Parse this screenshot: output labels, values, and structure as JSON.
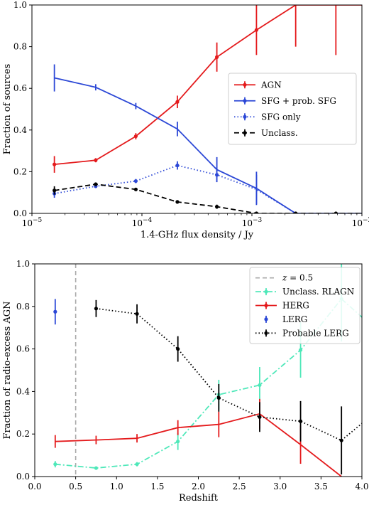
{
  "chart_data": [
    {
      "type": "line",
      "xscale": "log",
      "xlabel": "1.4-GHz flux density / Jy",
      "ylabel": "Fraction of sources",
      "xlim": [
        1e-05,
        0.01
      ],
      "ylim": [
        0,
        1
      ],
      "xticks": [
        {
          "value": 1e-05,
          "base": "10",
          "exp": "−5"
        },
        {
          "value": 0.0001,
          "base": "10",
          "exp": "−4"
        },
        {
          "value": 0.001,
          "base": "10",
          "exp": "−3"
        },
        {
          "value": 0.01,
          "base": "10",
          "exp": "−2"
        }
      ],
      "yticks": [
        {
          "value": 0,
          "label": "0.0"
        },
        {
          "value": 0.2,
          "label": "0.2"
        },
        {
          "value": 0.4,
          "label": "0.4"
        },
        {
          "value": 0.6,
          "label": "0.6"
        },
        {
          "value": 0.8,
          "label": "0.8"
        },
        {
          "value": 1.0,
          "label": "1.0"
        }
      ],
      "x": [
        1.6e-05,
        3.8e-05,
        8.8e-05,
        0.00021,
        0.00048,
        0.0011,
        0.0025,
        0.0058
      ],
      "series": [
        {
          "name": "AGN",
          "color": "#e41a1c",
          "dash": "solid",
          "x": [
            1.6e-05,
            3.8e-05,
            8.8e-05,
            0.00021,
            0.00048,
            0.0011,
            0.0025,
            0.0058,
            0.01
          ],
          "values": [
            0.235,
            0.255,
            0.37,
            0.535,
            0.75,
            0.88,
            1.0,
            1.0,
            1.0
          ],
          "err": [
            0.04,
            0.01,
            0.015,
            0.03,
            0.07,
            0.12,
            0.2,
            0.24,
            0
          ],
          "markers": [
            true,
            true,
            true,
            true,
            true,
            true,
            false,
            false,
            false
          ]
        },
        {
          "name": "SFG + prob. SFG",
          "color": "#2b47d6",
          "dash": "solid",
          "x": [
            1.6e-05,
            3.8e-05,
            8.8e-05,
            0.00021,
            0.00048,
            0.0011,
            0.0025,
            0.0058,
            0.01
          ],
          "values": [
            0.65,
            0.605,
            0.515,
            0.405,
            0.21,
            0.12,
            0.0,
            0.0,
            0.0
          ],
          "err": [
            0.065,
            0.015,
            0.015,
            0.035,
            0.06,
            0.08,
            0,
            0,
            0
          ],
          "markers": [
            false,
            false,
            false,
            false,
            false,
            false,
            false,
            false,
            false
          ]
        },
        {
          "name": "SFG only",
          "color": "#2b47d6",
          "dash": "dotted",
          "x": [
            1.6e-05,
            3.8e-05,
            8.8e-05,
            0.00021,
            0.00048,
            0.0011,
            0.0025
          ],
          "values": [
            0.095,
            0.13,
            0.155,
            0.23,
            0.185,
            0.115,
            0.0
          ],
          "err": [
            0.02,
            0.005,
            0.01,
            0.02,
            0.035,
            0.07,
            0
          ],
          "markers": [
            true,
            true,
            true,
            true,
            true,
            false,
            false
          ]
        },
        {
          "name": "Unclass.",
          "color": "#000000",
          "dash": "dashed",
          "x": [
            1.6e-05,
            3.8e-05,
            8.8e-05,
            0.00021,
            0.00048,
            0.0011,
            0.0025,
            0.0058,
            0.01
          ],
          "values": [
            0.11,
            0.14,
            0.115,
            0.055,
            0.032,
            0.0,
            0.0,
            0.0,
            0.0
          ],
          "err": [
            0.02,
            0.005,
            0.005,
            0.005,
            0.01,
            0.005,
            0,
            0,
            0
          ],
          "markers": [
            true,
            true,
            true,
            true,
            true,
            true,
            true,
            true,
            false
          ]
        }
      ],
      "legend": {
        "placement": "center-right"
      }
    },
    {
      "type": "line",
      "xlabel": "Redshift",
      "ylabel": "Fraction of radio-excess AGN",
      "xlim": [
        0,
        4
      ],
      "ylim": [
        0,
        1
      ],
      "xticks": [
        {
          "value": 0,
          "label": "0.0"
        },
        {
          "value": 0.5,
          "label": "0.5"
        },
        {
          "value": 1.0,
          "label": "1.0"
        },
        {
          "value": 1.5,
          "label": "1.5"
        },
        {
          "value": 2.0,
          "label": "2.0"
        },
        {
          "value": 2.5,
          "label": "2.5"
        },
        {
          "value": 3.0,
          "label": "3.0"
        },
        {
          "value": 3.5,
          "label": "3.5"
        },
        {
          "value": 4.0,
          "label": "4.0"
        }
      ],
      "yticks": [
        {
          "value": 0,
          "label": "0.0"
        },
        {
          "value": 0.2,
          "label": "0.2"
        },
        {
          "value": 0.4,
          "label": "0.4"
        },
        {
          "value": 0.6,
          "label": "0.6"
        },
        {
          "value": 0.8,
          "label": "0.8"
        },
        {
          "value": 1.0,
          "label": "1.0"
        }
      ],
      "vline": {
        "x": 0.5,
        "label_var": "z",
        "label_rest": " = 0.5",
        "color": "#aaaaaa"
      },
      "series": [
        {
          "name": "Unclass. RLAGN",
          "color": "#4ee8b9",
          "dash": "dashdot",
          "x": [
            0.25,
            0.75,
            1.25,
            1.75,
            2.25,
            2.75,
            3.25,
            3.75,
            4.0
          ],
          "values": [
            0.058,
            0.04,
            0.058,
            0.165,
            0.385,
            0.43,
            0.595,
            0.835,
            0.75
          ],
          "err": [
            0.015,
            0.005,
            0.01,
            0.04,
            0.07,
            0.085,
            0.13,
            0.2,
            0
          ],
          "markers": [
            true,
            true,
            true,
            true,
            true,
            true,
            true,
            true,
            false
          ]
        },
        {
          "name": "HERG",
          "color": "#e41a1c",
          "dash": "solid",
          "x": [
            0.25,
            0.75,
            1.25,
            1.75,
            2.25,
            2.75,
            3.25,
            3.75
          ],
          "values": [
            0.165,
            0.172,
            0.18,
            0.23,
            0.245,
            0.295,
            0.15,
            0.0
          ],
          "err": [
            0.03,
            0.02,
            0.02,
            0.035,
            0.06,
            0.07,
            0.09,
            0
          ],
          "markers": [
            false,
            false,
            false,
            false,
            false,
            false,
            false,
            false
          ]
        },
        {
          "name": "LERG",
          "color": "#2b47d6",
          "dash": "none",
          "x": [
            0.25
          ],
          "values": [
            0.775
          ],
          "err": [
            0.06
          ],
          "markers": [
            true
          ]
        },
        {
          "name": "Probable LERG",
          "color": "#000000",
          "dash": "dotted",
          "x": [
            0.75,
            1.25,
            1.75,
            2.25,
            2.75,
            3.25,
            3.75,
            4.0
          ],
          "values": [
            0.79,
            0.765,
            0.6,
            0.37,
            0.28,
            0.26,
            0.17,
            0.25
          ],
          "err": [
            0.04,
            0.045,
            0.06,
            0.065,
            0.07,
            0.095,
            0.16,
            0
          ],
          "markers": [
            true,
            true,
            true,
            true,
            true,
            true,
            true,
            false
          ]
        }
      ],
      "legend": {
        "placement": "top-right"
      }
    }
  ]
}
